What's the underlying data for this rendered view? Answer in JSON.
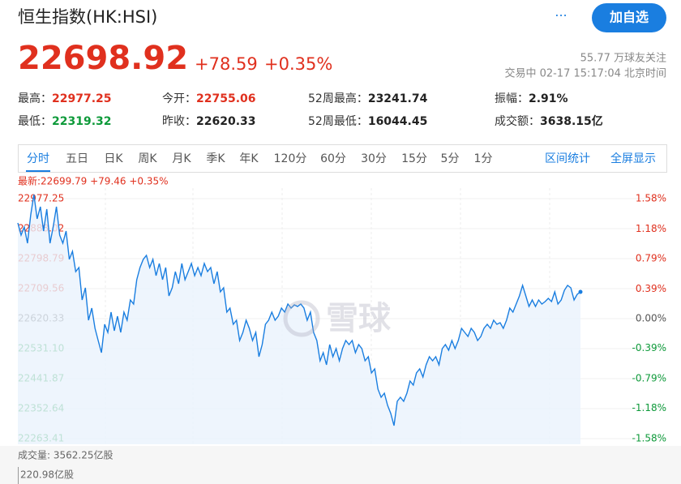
{
  "header": {
    "title": "恒生指数(HK:HSI)",
    "more": "···",
    "button": "加自选",
    "price": "22698.92",
    "change": "+78.59",
    "change_pct": "+0.35%",
    "followers": "55.77 万球友关注",
    "status": "交易中 02-17 15:17:04 北京时间"
  },
  "stats": [
    {
      "label": "最高：",
      "value": "22977.25",
      "color": "#e0301e"
    },
    {
      "label": "今开：",
      "value": "22755.06",
      "color": "#e0301e"
    },
    {
      "label": "52周最高：",
      "value": "23241.74",
      "color": "#222222"
    },
    {
      "label": "振幅：",
      "value": "2.91%",
      "color": "#222222"
    },
    {
      "label": "最低：",
      "value": "22319.32",
      "color": "#0e9a3a"
    },
    {
      "label": "昨收：",
      "value": "22620.33",
      "color": "#222222"
    },
    {
      "label": "52周最低：",
      "value": "16044.45",
      "color": "#222222"
    },
    {
      "label": "成交额：",
      "value": "3638.15亿",
      "color": "#222222"
    }
  ],
  "tabs": [
    "分时",
    "五日",
    "日K",
    "周K",
    "月K",
    "季K",
    "年K",
    "120分",
    "60分",
    "30分",
    "15分",
    "5分",
    "1分"
  ],
  "tools": [
    "区间统计",
    "全屏显示"
  ],
  "latest": "最新:22699.79 +79.46 +0.35%",
  "watermark": "雪球",
  "volume": {
    "label": "成交量: 3562.25亿股",
    "scale": "220.98亿股"
  },
  "chart_data": {
    "type": "line",
    "color": "#1a7ee0",
    "grid": true,
    "values": [
      22905.0,
      22868.8,
      22892.9,
      22844.7,
      22929.1,
      22989.4,
      22917.1,
      22953.2,
      22880.9,
      22946.0,
      22844.7,
      22892.9,
      22953.2,
      22868.8,
      22844.7,
      22880.9,
      22796.5,
      22820.6,
      22760.3,
      22772.3,
      22675.9,
      22712.0,
      22615.6,
      22651.7,
      22591.4,
      22555.3,
      22519.1,
      22603.5,
      22579.4,
      22639.7,
      22584.2,
      22627.6,
      22579.4,
      22639.7,
      22615.6,
      22675.9,
      22663.8,
      22736.2,
      22772.3,
      22796.5,
      22808.5,
      22772.3,
      22796.5,
      22748.2,
      22784.4,
      22736.2,
      22772.3,
      22687.9,
      22712.0,
      22760.3,
      22724.1,
      22784.4,
      22736.2,
      22760.3,
      22784.4,
      22748.2,
      22772.3,
      22748.2,
      22784.4,
      22760.3,
      22772.3,
      22724.1,
      22760.3,
      22700.0,
      22712.0,
      22639.7,
      22651.7,
      22603.5,
      22615.6,
      22555.3,
      22579.4,
      22615.6,
      22591.4,
      22555.3,
      22579.4,
      22507.0,
      22543.2,
      22603.5,
      22615.6,
      22639.7,
      22615.6,
      22627.6,
      22651.7,
      22639.7,
      22663.8,
      22651.7,
      22661.4,
      22656.6,
      22663.8,
      22651.7,
      22615.6,
      22639.7,
      22579.4,
      22555.3,
      22495.0,
      22519.1,
      22482.9,
      22543.2,
      22507.0,
      22531.1,
      22495.0,
      22531.1,
      22555.3,
      22543.2,
      22555.3,
      22519.1,
      22543.2,
      22531.1,
      22495.0,
      22507.0,
      22458.8,
      22470.8,
      22410.5,
      22386.4,
      22398.5,
      22362.3,
      22338.2,
      22302.0,
      22374.4,
      22386.4,
      22374.4,
      22398.5,
      22434.7,
      22422.6,
      22458.8,
      22470.8,
      22446.7,
      22482.9,
      22507.0,
      22495.0,
      22507.0,
      22482.9,
      22531.1,
      22543.2,
      22526.3,
      22555.3,
      22531.1,
      22555.3,
      22591.4,
      22579.4,
      22567.3,
      22591.4,
      22579.4,
      22555.3,
      22567.3,
      22591.4,
      22603.5,
      22591.4,
      22615.6,
      22603.5,
      22608.3,
      22591.4,
      22615.6,
      22651.7,
      22639.7,
      22663.8,
      22687.9,
      22719.3,
      22687.9,
      22656.6,
      22675.9,
      22656.6,
      22675.9,
      22663.8,
      22671.0,
      22680.7,
      22671.0,
      22700.0,
      22663.8,
      22675.9,
      22704.8,
      22719.3,
      22712.0,
      22675.9,
      22692.7,
      22699.8
    ],
    "ylim": [
      22263.41,
      22977.25
    ],
    "yticks": [
      22977.25,
      22888.02,
      22798.79,
      22709.56,
      22620.33,
      {
        "value": 22531.1,
        "label": "22531.10"
      },
      22441.87,
      22352.64,
      22263.41
    ],
    "y2lim": [
      -1.58,
      1.58
    ],
    "y2ticks": [
      {
        "value": 1.58,
        "label": "1.58%"
      },
      {
        "value": 1.18,
        "label": "1.18%"
      },
      {
        "value": 0.79,
        "label": "0.79%"
      },
      {
        "value": 0.39,
        "label": "0.39%"
      },
      {
        "value": 0,
        "label": "0.00%"
      },
      {
        "value": -0.39,
        "label": "-0.39%"
      },
      {
        "value": -0.79,
        "label": "-0.79%"
      },
      {
        "value": -1.18,
        "label": "-1.18%"
      },
      {
        "value": -1.58,
        "label": "-1.58%"
      }
    ]
  }
}
